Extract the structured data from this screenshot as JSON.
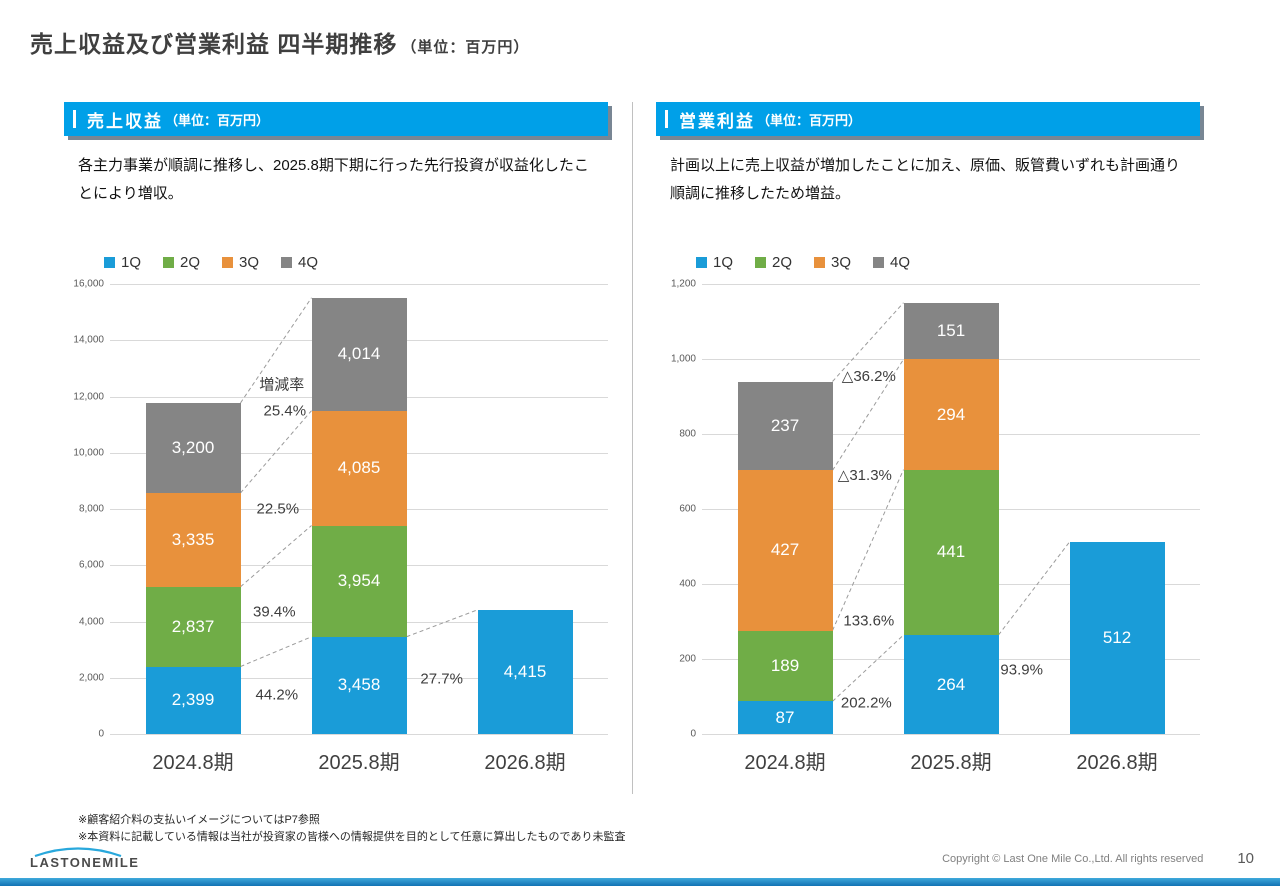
{
  "title": {
    "main": "売上収益及び営業利益 四半期推移",
    "unit": "（単位：百万円）"
  },
  "colors": {
    "q1_blue": "#1a9cd8",
    "q2_green": "#70ad47",
    "q3_orange": "#e8913c",
    "q4_gray": "#858585",
    "header_bg": "#00a0e8",
    "bottom_bar_blue": "#1f8fce"
  },
  "panels": {
    "left": {
      "header_title": "売上収益",
      "header_unit": "（単位：百万円）",
      "description": "各主力事業が順調に推移し、2025.8期下期に行った先行投資が収益化したことにより増収。"
    },
    "right": {
      "header_title": "営業利益",
      "header_unit": "（単位：百万円）",
      "description": "計画以上に売上収益が増加したことに加え、原価、販管費いずれも計画通り順調に推移したため増益。"
    }
  },
  "chart_data": [
    {
      "type": "bar",
      "stacked": true,
      "title": "売上収益（単位：百万円）",
      "categories": [
        "2024.8期",
        "2025.8期",
        "2026.8期"
      ],
      "series": [
        {
          "name": "1Q",
          "color": "#1a9cd8",
          "values": [
            2399,
            3458,
            4415
          ]
        },
        {
          "name": "2Q",
          "color": "#70ad47",
          "values": [
            2837,
            3954,
            null
          ]
        },
        {
          "name": "3Q",
          "color": "#e8913c",
          "values": [
            3335,
            4085,
            null
          ]
        },
        {
          "name": "4Q",
          "color": "#858585",
          "values": [
            3200,
            4014,
            null
          ]
        }
      ],
      "ylim": [
        0,
        16000
      ],
      "ystep": 2000,
      "grid": true,
      "legend_position": "top-left",
      "annotations": [
        {
          "text": "増減率",
          "x": 0.345,
          "y": 0.222
        },
        {
          "text": "25.4%",
          "x": 0.351,
          "y": 0.282
        },
        {
          "text": "22.5%",
          "x": 0.337,
          "y": 0.5
        },
        {
          "text": "39.4%",
          "x": 0.33,
          "y": 0.729
        },
        {
          "text": "44.2%",
          "x": 0.335,
          "y": 0.913
        },
        {
          "text": "27.7%",
          "x": 0.666,
          "y": 0.878
        }
      ]
    },
    {
      "type": "bar",
      "stacked": true,
      "title": "営業利益（単位：百万円）",
      "categories": [
        "2024.8期",
        "2025.8期",
        "2026.8期"
      ],
      "series": [
        {
          "name": "1Q",
          "color": "#1a9cd8",
          "values": [
            87,
            264,
            512
          ]
        },
        {
          "name": "2Q",
          "color": "#70ad47",
          "values": [
            189,
            441,
            null
          ]
        },
        {
          "name": "3Q",
          "color": "#e8913c",
          "values": [
            427,
            294,
            null
          ]
        },
        {
          "name": "4Q",
          "color": "#858585",
          "values": [
            237,
            151,
            null
          ]
        }
      ],
      "ylim": [
        0,
        1200
      ],
      "ystep": 200,
      "grid": true,
      "legend_position": "top-left",
      "annotations": [
        {
          "text": "△36.2%",
          "x": 0.335,
          "y": 0.205
        },
        {
          "text": "△31.3%",
          "x": 0.327,
          "y": 0.425
        },
        {
          "text": "133.6%",
          "x": 0.335,
          "y": 0.748
        },
        {
          "text": "202.2%",
          "x": 0.33,
          "y": 0.93
        },
        {
          "text": "93.9%",
          "x": 0.642,
          "y": 0.858
        }
      ]
    }
  ],
  "notes": [
    "※顧客紹介料の支払いイメージについてはP7参照",
    "※本資料に記載している情報は当社が投資家の皆様への情報提供を目的として任意に算出したものであり未監査"
  ],
  "footer": {
    "logo_text": "LASTONEMILE",
    "copyright": "Copyright © Last One Mile Co.,Ltd. All rights reserved",
    "page_number": "10"
  }
}
